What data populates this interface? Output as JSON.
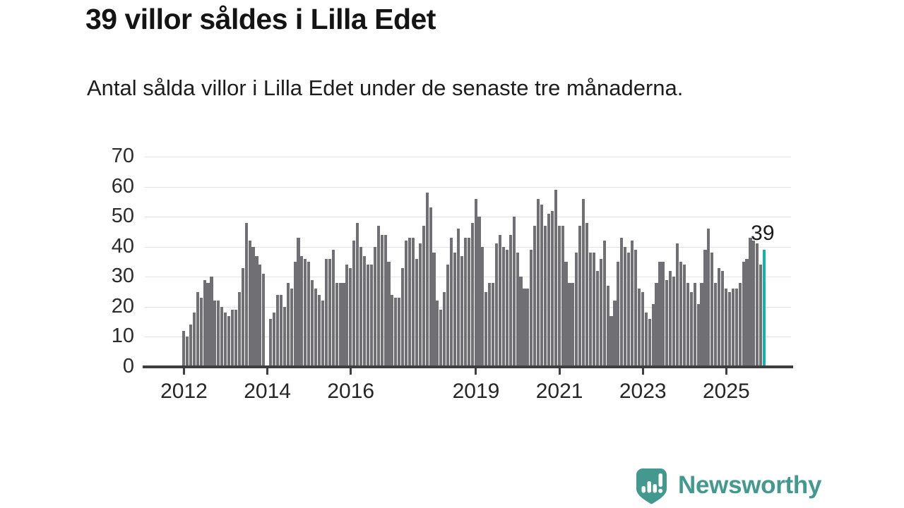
{
  "header": {
    "title": "39 villor såldes i Lilla Edet",
    "subtitle": "Antal sålda villor i Lilla Edet under de senaste tre månaderna."
  },
  "chart_data": {
    "type": "bar",
    "title": "39 villor såldes i Lilla Edet",
    "subtitle": "Antal sålda villor i Lilla Edet under de senaste tre månaderna.",
    "x_description": "monthly rolling 3-month counts, Jan 2012 to latest",
    "values": [
      12,
      10,
      14,
      18,
      25,
      23,
      29,
      28,
      30,
      22,
      22,
      20,
      18,
      17,
      19,
      19,
      25,
      33,
      48,
      42,
      40,
      37,
      34,
      31,
      0,
      16,
      18,
      24,
      24,
      20,
      28,
      26,
      35,
      43,
      37,
      36,
      35,
      29,
      26,
      24,
      22,
      36,
      36,
      39,
      28,
      28,
      28,
      34,
      33,
      42,
      48,
      40,
      37,
      34,
      34,
      40,
      47,
      44,
      44,
      35,
      24,
      23,
      23,
      33,
      42,
      43,
      43,
      36,
      41,
      47,
      58,
      53,
      38,
      22,
      19,
      25,
      34,
      43,
      38,
      46,
      37,
      43,
      43,
      48,
      56,
      50,
      40,
      25,
      28,
      28,
      41,
      44,
      40,
      39,
      44,
      50,
      38,
      30,
      26,
      26,
      39,
      47,
      56,
      54,
      47,
      51,
      52,
      59,
      47,
      47,
      35,
      28,
      28,
      38,
      47,
      56,
      48,
      38,
      38,
      32,
      36,
      42,
      27,
      17,
      22,
      35,
      43,
      40,
      38,
      42,
      39,
      26,
      25,
      18,
      16,
      21,
      28,
      35,
      35,
      29,
      32,
      30,
      41,
      35,
      34,
      28,
      25,
      28,
      21,
      28,
      39,
      46,
      38,
      28,
      33,
      32,
      26,
      25,
      26,
      26,
      28,
      35,
      36,
      43,
      42,
      41,
      34,
      39
    ],
    "highlight_index": 167,
    "highlight_label": "39",
    "ylim": [
      0,
      70
    ],
    "y_ticks": [
      0,
      10,
      20,
      30,
      40,
      50,
      60,
      70
    ],
    "year_ticks": [
      {
        "label": "2012",
        "index": 0
      },
      {
        "label": "2014",
        "index": 24
      },
      {
        "label": "2016",
        "index": 48
      },
      {
        "label": "2019",
        "index": 84
      },
      {
        "label": "2021",
        "index": 108
      },
      {
        "label": "2023",
        "index": 132
      },
      {
        "label": "2025",
        "index": 156
      }
    ],
    "grid": true,
    "legend": "none",
    "colors": {
      "bar": "#6f6f74",
      "highlight": "#16b1a7",
      "grid": "#e3e3e3",
      "axis": "#3e3e40",
      "labels": "#2b2b2b"
    }
  },
  "footer": {
    "brand": "Newsworthy",
    "brand_color": "#44998f",
    "logo_icon": "bar-chart-exclamation-badge"
  }
}
